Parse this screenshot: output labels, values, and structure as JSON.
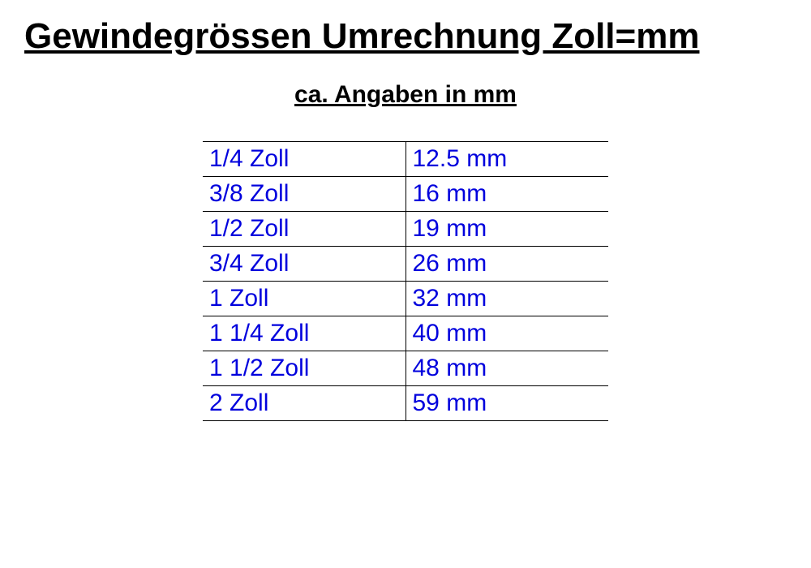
{
  "title": "Gewindegrössen Umrechnung Zoll=mm",
  "subtitle": "ca. Angaben in mm",
  "table": {
    "rows": [
      {
        "zoll": "1/4 Zoll",
        "mm": "12.5 mm"
      },
      {
        "zoll": "3/8 Zoll",
        "mm": "16 mm"
      },
      {
        "zoll": "1/2 Zoll",
        "mm": "19 mm"
      },
      {
        "zoll": "3/4 Zoll",
        "mm": "26 mm"
      },
      {
        "zoll": "1 Zoll",
        "mm": "32 mm"
      },
      {
        "zoll": "1 1/4 Zoll",
        "mm": "40 mm"
      },
      {
        "zoll": "1 1/2 Zoll",
        "mm": "48 mm"
      },
      {
        "zoll": "2 Zoll",
        "mm": "59 mm"
      }
    ],
    "text_color": "#0000dd",
    "border_color": "#000000",
    "font_size": 30
  },
  "background_color": "#ffffff"
}
